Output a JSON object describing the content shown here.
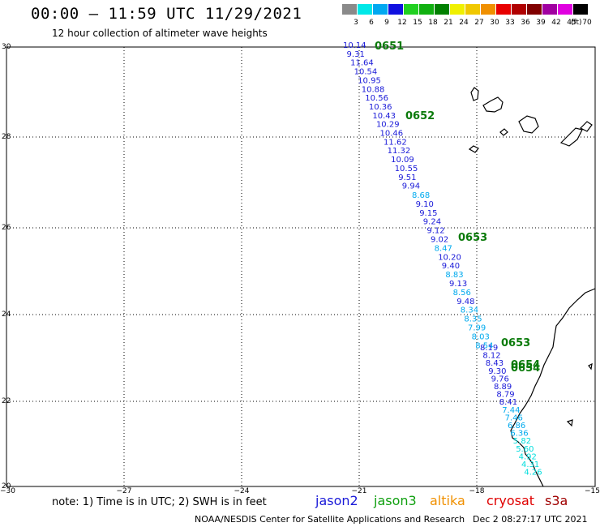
{
  "header": {
    "title": "00:00 – 11:59 UTC 11/29/2021",
    "subtitle": "12 hour collection of altimeter wave heights"
  },
  "colorbar": {
    "unit": "(ft)",
    "cells": [
      {
        "label": "3",
        "color": "#8a8a8a"
      },
      {
        "label": "6",
        "color": "#00e8e8"
      },
      {
        "label": "9",
        "color": "#00a8f0"
      },
      {
        "label": "12",
        "color": "#1010e0"
      },
      {
        "label": "15",
        "color": "#20d020"
      },
      {
        "label": "18",
        "color": "#10b010"
      },
      {
        "label": "21",
        "color": "#008000"
      },
      {
        "label": "24",
        "color": "#f0f000"
      },
      {
        "label": "27",
        "color": "#f0c800"
      },
      {
        "label": "30",
        "color": "#f09000"
      },
      {
        "label": "33",
        "color": "#e80000"
      },
      {
        "label": "36",
        "color": "#b00000"
      },
      {
        "label": "39",
        "color": "#800000"
      },
      {
        "label": "42",
        "color": "#a000a0"
      },
      {
        "label": "45",
        "color": "#e000e0"
      },
      {
        "label": "70",
        "color": "#000000"
      }
    ]
  },
  "axes": {
    "lat_labels": [
      "30",
      "28",
      "26",
      "24",
      "22",
      "20"
    ],
    "lon_labels": [
      "−30",
      "−27",
      "−24",
      "−21",
      "−18",
      "−15"
    ]
  },
  "track": {
    "time_labels": [
      "0651",
      "0652",
      "0653",
      "0653",
      "0654",
      "0654"
    ],
    "dark_values": [
      "10.14",
      "9.31",
      "11.64",
      "10.54",
      "10.95",
      "10.88",
      "10.56",
      "10.36",
      "10.43",
      "10.29",
      "10.46",
      "11.62",
      "11.32",
      "10.09",
      "10.55",
      "9.51",
      "9.94"
    ],
    "mid_values": [
      "8.68",
      "9.10",
      "9.15",
      "9.24",
      "9.12",
      "9.02",
      "8.47",
      "10.20",
      "9.40",
      "8.83",
      "9.13",
      "8.56",
      "9.48",
      "8.34",
      "8.35",
      "7.99",
      "8.03",
      "8.54"
    ],
    "lower_values": [
      "8.19",
      "8.12",
      "8.43",
      "9.30",
      "9.76",
      "8.89",
      "8.79",
      "8.41",
      "7.44",
      "7.46",
      "6.86",
      "6.36",
      "5.82",
      "5.60",
      "4.92",
      "4.31",
      "4.26"
    ],
    "colors": {
      "dark": "#1a1ad8",
      "mid": "#00aaee",
      "light": "#00dddd"
    }
  },
  "footer": {
    "note": "note:  1) Time is in UTC;  2) SWH is in feet",
    "satellites": [
      {
        "name": "jason2",
        "color": "#1a1ad8"
      },
      {
        "name": "jason3",
        "color": "#10a010"
      },
      {
        "name": "altika",
        "color": "#f09000"
      },
      {
        "name": "cryosat",
        "color": "#e00000"
      },
      {
        "name": "s3a",
        "color": "#a00000"
      }
    ],
    "credit": "NOAA/NESDIS Center for Satellite Applications and Research",
    "date": "Dec  2 08:27:17 UTC 2021"
  }
}
